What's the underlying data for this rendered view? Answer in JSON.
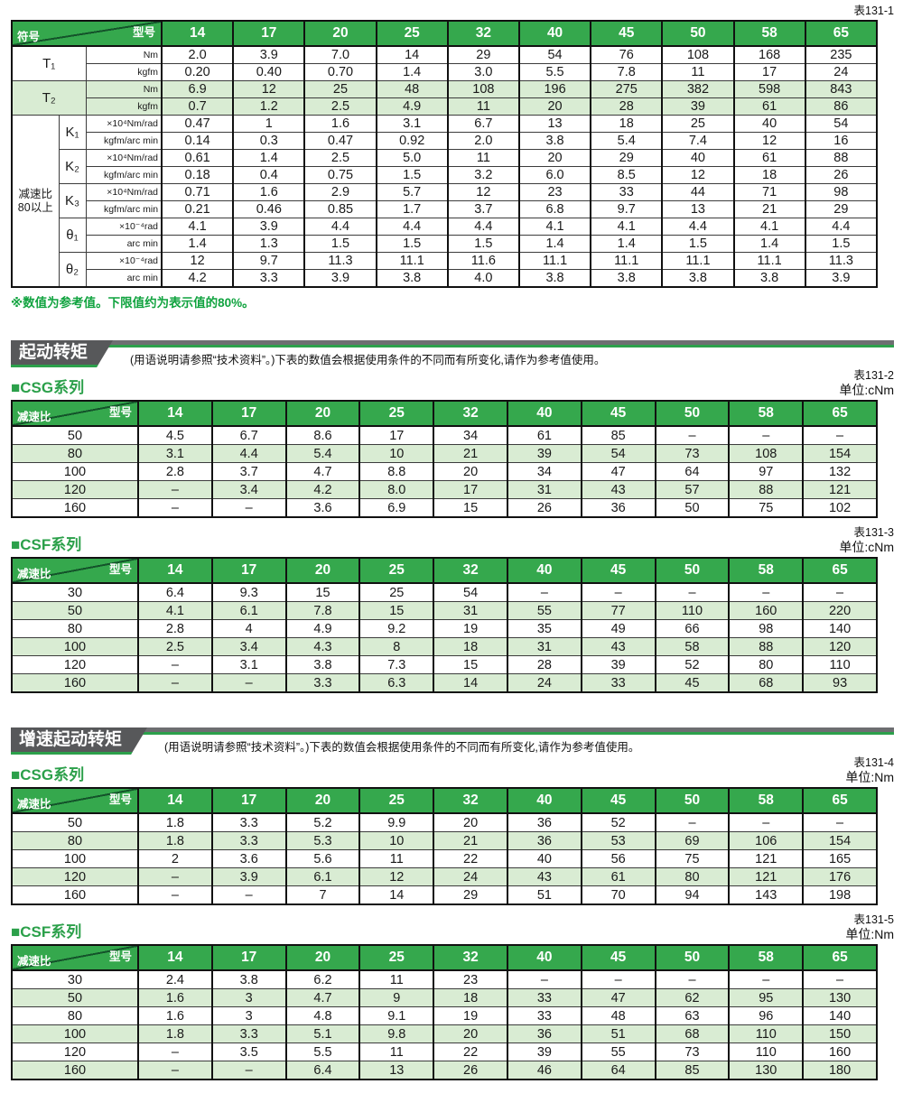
{
  "models": [
    "14",
    "17",
    "20",
    "25",
    "32",
    "40",
    "45",
    "50",
    "58",
    "65"
  ],
  "table1": {
    "tag": "表131-1",
    "corner_top": "型号",
    "corner_side": "符号",
    "group1": "减速比",
    "group2": "80以上",
    "blocks": [
      {
        "symbol": "T₁",
        "rows": [
          {
            "unit": "Nm",
            "values": [
              "2.0",
              "3.9",
              "7.0",
              "14",
              "29",
              "54",
              "76",
              "108",
              "168",
              "235"
            ]
          },
          {
            "unit": "kgfm",
            "values": [
              "0.20",
              "0.40",
              "0.70",
              "1.4",
              "3.0",
              "5.5",
              "7.8",
              "11",
              "17",
              "24"
            ]
          }
        ]
      },
      {
        "symbol": "T₂",
        "rows": [
          {
            "unit": "Nm",
            "values": [
              "6.9",
              "12",
              "25",
              "48",
              "108",
              "196",
              "275",
              "382",
              "598",
              "843"
            ]
          },
          {
            "unit": "kgfm",
            "values": [
              "0.7",
              "1.2",
              "2.5",
              "4.9",
              "11",
              "20",
              "28",
              "39",
              "61",
              "86"
            ]
          }
        ]
      },
      {
        "symbol": "K₁",
        "rows": [
          {
            "unit": "×10⁴Nm/rad",
            "values": [
              "0.47",
              "1",
              "1.6",
              "3.1",
              "6.7",
              "13",
              "18",
              "25",
              "40",
              "54"
            ]
          },
          {
            "unit": "kgfm/arc min",
            "values": [
              "0.14",
              "0.3",
              "0.47",
              "0.92",
              "2.0",
              "3.8",
              "5.4",
              "7.4",
              "12",
              "16"
            ]
          }
        ]
      },
      {
        "symbol": "K₂",
        "rows": [
          {
            "unit": "×10⁴Nm/rad",
            "values": [
              "0.61",
              "1.4",
              "2.5",
              "5.0",
              "11",
              "20",
              "29",
              "40",
              "61",
              "88"
            ]
          },
          {
            "unit": "kgfm/arc min",
            "values": [
              "0.18",
              "0.4",
              "0.75",
              "1.5",
              "3.2",
              "6.0",
              "8.5",
              "12",
              "18",
              "26"
            ]
          }
        ]
      },
      {
        "symbol": "K₃",
        "rows": [
          {
            "unit": "×10⁴Nm/rad",
            "values": [
              "0.71",
              "1.6",
              "2.9",
              "5.7",
              "12",
              "23",
              "33",
              "44",
              "71",
              "98"
            ]
          },
          {
            "unit": "kgfm/arc min",
            "values": [
              "0.21",
              "0.46",
              "0.85",
              "1.7",
              "3.7",
              "6.8",
              "9.7",
              "13",
              "21",
              "29"
            ]
          }
        ]
      },
      {
        "symbol": "θ₁",
        "rows": [
          {
            "unit": "×10⁻⁴rad",
            "values": [
              "4.1",
              "3.9",
              "4.4",
              "4.4",
              "4.4",
              "4.1",
              "4.1",
              "4.4",
              "4.1",
              "4.4"
            ]
          },
          {
            "unit": "arc min",
            "values": [
              "1.4",
              "1.3",
              "1.5",
              "1.5",
              "1.5",
              "1.4",
              "1.4",
              "1.5",
              "1.4",
              "1.5"
            ]
          }
        ]
      },
      {
        "symbol": "θ₂",
        "rows": [
          {
            "unit": "×10⁻⁴rad",
            "values": [
              "12",
              "9.7",
              "11.3",
              "11.1",
              "11.6",
              "11.1",
              "11.1",
              "11.1",
              "11.1",
              "11.3"
            ]
          },
          {
            "unit": "arc min",
            "values": [
              "4.2",
              "3.3",
              "3.9",
              "3.8",
              "4.0",
              "3.8",
              "3.8",
              "3.8",
              "3.8",
              "3.9"
            ]
          }
        ]
      }
    ],
    "note": "※数值为参考值。下限值约为表示值的80%。"
  },
  "section1": {
    "title": "起动转矩",
    "desc": "(用语说明请参照“技术资料”。)下表的数值会根据使用条件的不同而有所变化,请作为参考值使用。"
  },
  "section2": {
    "title": "增速起动转矩",
    "desc": "(用语说明请参照“技术资料”。)下表的数值会根据使用条件的不同而有所变化,请作为参考值使用。"
  },
  "corner": {
    "top": "型号",
    "side": "减速比"
  },
  "table2": {
    "tag": "表131-2",
    "unit_label": "单位:cNm",
    "series": "■CSG系列",
    "rows": [
      {
        "ratio": "50",
        "values": [
          "4.5",
          "6.7",
          "8.6",
          "17",
          "34",
          "61",
          "85",
          "–",
          "–",
          "–"
        ]
      },
      {
        "ratio": "80",
        "values": [
          "3.1",
          "4.4",
          "5.4",
          "10",
          "21",
          "39",
          "54",
          "73",
          "108",
          "154"
        ]
      },
      {
        "ratio": "100",
        "values": [
          "2.8",
          "3.7",
          "4.7",
          "8.8",
          "20",
          "34",
          "47",
          "64",
          "97",
          "132"
        ]
      },
      {
        "ratio": "120",
        "values": [
          "–",
          "3.4",
          "4.2",
          "8.0",
          "17",
          "31",
          "43",
          "57",
          "88",
          "121"
        ]
      },
      {
        "ratio": "160",
        "values": [
          "–",
          "–",
          "3.6",
          "6.9",
          "15",
          "26",
          "36",
          "50",
          "75",
          "102"
        ]
      }
    ]
  },
  "table3": {
    "tag": "表131-3",
    "unit_label": "单位:cNm",
    "series": "■CSF系列",
    "rows": [
      {
        "ratio": "30",
        "values": [
          "6.4",
          "9.3",
          "15",
          "25",
          "54",
          "–",
          "–",
          "–",
          "–",
          "–"
        ]
      },
      {
        "ratio": "50",
        "values": [
          "4.1",
          "6.1",
          "7.8",
          "15",
          "31",
          "55",
          "77",
          "110",
          "160",
          "220"
        ]
      },
      {
        "ratio": "80",
        "values": [
          "2.8",
          "4",
          "4.9",
          "9.2",
          "19",
          "35",
          "49",
          "66",
          "98",
          "140"
        ]
      },
      {
        "ratio": "100",
        "values": [
          "2.5",
          "3.4",
          "4.3",
          "8",
          "18",
          "31",
          "43",
          "58",
          "88",
          "120"
        ]
      },
      {
        "ratio": "120",
        "values": [
          "–",
          "3.1",
          "3.8",
          "7.3",
          "15",
          "28",
          "39",
          "52",
          "80",
          "110"
        ]
      },
      {
        "ratio": "160",
        "values": [
          "–",
          "–",
          "3.3",
          "6.3",
          "14",
          "24",
          "33",
          "45",
          "68",
          "93"
        ]
      }
    ]
  },
  "table4": {
    "tag": "表131-4",
    "unit_label": "单位:Nm",
    "series": "■CSG系列",
    "rows": [
      {
        "ratio": "50",
        "values": [
          "1.8",
          "3.3",
          "5.2",
          "9.9",
          "20",
          "36",
          "52",
          "–",
          "–",
          "–"
        ]
      },
      {
        "ratio": "80",
        "values": [
          "1.8",
          "3.3",
          "5.3",
          "10",
          "21",
          "36",
          "53",
          "69",
          "106",
          "154"
        ]
      },
      {
        "ratio": "100",
        "values": [
          "2",
          "3.6",
          "5.6",
          "11",
          "22",
          "40",
          "56",
          "75",
          "121",
          "165"
        ]
      },
      {
        "ratio": "120",
        "values": [
          "–",
          "3.9",
          "6.1",
          "12",
          "24",
          "43",
          "61",
          "80",
          "121",
          "176"
        ]
      },
      {
        "ratio": "160",
        "values": [
          "–",
          "–",
          "7",
          "14",
          "29",
          "51",
          "70",
          "94",
          "143",
          "198"
        ]
      }
    ]
  },
  "table5": {
    "tag": "表131-5",
    "unit_label": "单位:Nm",
    "series": "■CSF系列",
    "rows": [
      {
        "ratio": "30",
        "values": [
          "2.4",
          "3.8",
          "6.2",
          "11",
          "23",
          "–",
          "–",
          "–",
          "–",
          "–"
        ]
      },
      {
        "ratio": "50",
        "values": [
          "1.6",
          "3",
          "4.7",
          "9",
          "18",
          "33",
          "47",
          "62",
          "95",
          "130"
        ]
      },
      {
        "ratio": "80",
        "values": [
          "1.6",
          "3",
          "4.8",
          "9.1",
          "19",
          "33",
          "48",
          "63",
          "96",
          "140"
        ]
      },
      {
        "ratio": "100",
        "values": [
          "1.8",
          "3.3",
          "5.1",
          "9.8",
          "20",
          "36",
          "51",
          "68",
          "110",
          "150"
        ]
      },
      {
        "ratio": "120",
        "values": [
          "–",
          "3.5",
          "5.5",
          "11",
          "22",
          "39",
          "55",
          "73",
          "110",
          "160"
        ]
      },
      {
        "ratio": "160",
        "values": [
          "–",
          "–",
          "6.4",
          "13",
          "26",
          "46",
          "64",
          "85",
          "130",
          "180"
        ]
      }
    ]
  }
}
